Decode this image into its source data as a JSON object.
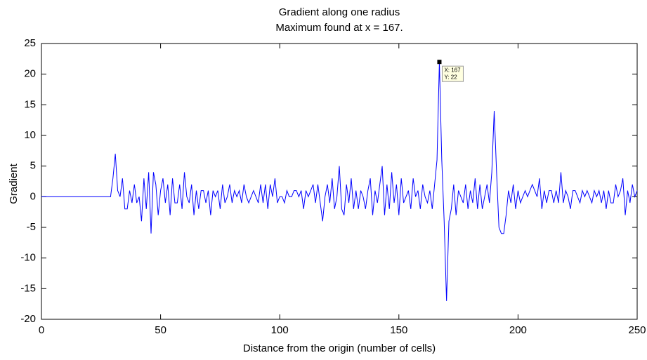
{
  "chart_data": {
    "type": "line",
    "title": "Gradient along one radius",
    "subtitle": "Maximum found at x = 167.",
    "x_label": "Distance from the origin (number of cells)",
    "y_label": "Gradient",
    "xlim": [
      0,
      250
    ],
    "ylim": [
      -20,
      25
    ],
    "xticks": [
      0,
      50,
      100,
      150,
      200,
      250
    ],
    "yticks": [
      -20,
      -15,
      -10,
      -5,
      0,
      5,
      10,
      15,
      20,
      25
    ],
    "grid": false,
    "x": [
      0,
      1,
      2,
      3,
      4,
      5,
      6,
      7,
      8,
      9,
      10,
      11,
      12,
      13,
      14,
      15,
      16,
      17,
      18,
      19,
      20,
      21,
      22,
      23,
      24,
      25,
      26,
      27,
      28,
      29,
      30,
      31,
      32,
      33,
      34,
      35,
      36,
      37,
      38,
      39,
      40,
      41,
      42,
      43,
      44,
      45,
      46,
      47,
      48,
      49,
      50,
      51,
      52,
      53,
      54,
      55,
      56,
      57,
      58,
      59,
      60,
      61,
      62,
      63,
      64,
      65,
      66,
      67,
      68,
      69,
      70,
      71,
      72,
      73,
      74,
      75,
      76,
      77,
      78,
      79,
      80,
      81,
      82,
      83,
      84,
      85,
      86,
      87,
      88,
      89,
      90,
      91,
      92,
      93,
      94,
      95,
      96,
      97,
      98,
      99,
      100,
      101,
      102,
      103,
      104,
      105,
      106,
      107,
      108,
      109,
      110,
      111,
      112,
      113,
      114,
      115,
      116,
      117,
      118,
      119,
      120,
      121,
      122,
      123,
      124,
      125,
      126,
      127,
      128,
      129,
      130,
      131,
      132,
      133,
      134,
      135,
      136,
      137,
      138,
      139,
      140,
      141,
      142,
      143,
      144,
      145,
      146,
      147,
      148,
      149,
      150,
      151,
      152,
      153,
      154,
      155,
      156,
      157,
      158,
      159,
      160,
      161,
      162,
      163,
      164,
      165,
      166,
      167,
      168,
      169,
      170,
      171,
      172,
      173,
      174,
      175,
      176,
      177,
      178,
      179,
      180,
      181,
      182,
      183,
      184,
      185,
      186,
      187,
      188,
      189,
      190,
      191,
      192,
      193,
      194,
      195,
      196,
      197,
      198,
      199,
      200,
      201,
      202,
      203,
      204,
      205,
      206,
      207,
      208,
      209,
      210,
      211,
      212,
      213,
      214,
      215,
      216,
      217,
      218,
      219,
      220,
      221,
      222,
      223,
      224,
      225,
      226,
      227,
      228,
      229,
      230,
      231,
      232,
      233,
      234,
      235,
      236,
      237,
      238,
      239,
      240,
      241,
      242,
      243,
      244,
      245,
      246,
      247,
      248,
      249,
      250
    ],
    "series": [
      {
        "color": "#0000ff",
        "values": [
          0,
          0,
          0,
          0,
          0,
          0,
          0,
          0,
          0,
          0,
          0,
          0,
          0,
          0,
          0,
          0,
          0,
          0,
          0,
          0,
          0,
          0,
          0,
          0,
          0,
          0,
          0,
          0,
          0,
          0,
          3,
          7,
          1,
          0,
          3,
          -2,
          -2,
          1,
          -1,
          2,
          -1,
          0,
          -4,
          3,
          -2,
          4,
          -6,
          4,
          2,
          -3,
          1,
          3,
          -1,
          2,
          -3,
          3,
          -1,
          -1,
          2,
          -2,
          4,
          0,
          -1,
          2,
          -3,
          1,
          -2,
          1,
          1,
          -1,
          1,
          -3,
          1,
          0,
          1,
          -2,
          2,
          -1,
          0,
          2,
          -1,
          1,
          0,
          1,
          -1,
          2,
          0,
          -1,
          0,
          1,
          0,
          -1,
          2,
          -1,
          2,
          -2,
          2,
          0,
          3,
          -1,
          0,
          0,
          -1,
          1,
          0,
          0,
          1,
          1,
          0,
          1,
          -2,
          1,
          0,
          1,
          2,
          -1,
          2,
          -1,
          -4,
          0,
          2,
          -1,
          3,
          -2,
          0,
          5,
          -2,
          -3,
          2,
          -1,
          3,
          -2,
          1,
          -2,
          1,
          0,
          -2,
          1,
          3,
          -3,
          1,
          -1,
          2,
          5,
          -3,
          2,
          -2,
          4,
          -1,
          2,
          -3,
          3,
          -1,
          0,
          1,
          -2,
          3,
          0,
          1,
          -2,
          2,
          0,
          -1,
          1,
          -2,
          2,
          6,
          22,
          6,
          -4,
          -17,
          -4,
          -2,
          2,
          -3,
          1,
          0,
          -1,
          2,
          -2,
          1,
          -1,
          3,
          -2,
          2,
          -2,
          0,
          2,
          -1,
          4,
          14,
          4,
          -5,
          -6,
          -6,
          -3,
          1,
          -1,
          2,
          -2,
          1,
          -1,
          0,
          1,
          0,
          1,
          2,
          1,
          0,
          3,
          -2,
          1,
          -1,
          1,
          1,
          -1,
          1,
          -1,
          4,
          -1,
          1,
          0,
          -2,
          1,
          1,
          0,
          -1,
          1,
          0,
          1,
          0,
          -1,
          1,
          0,
          1,
          -1,
          1,
          -2,
          1,
          -1,
          -1,
          2,
          0,
          1,
          3,
          -3,
          1,
          -1,
          2,
          0,
          1
        ]
      }
    ],
    "annotations": [
      {
        "x": 167,
        "y": 22,
        "label_x": "X: 167",
        "label_y": "Y: 22"
      }
    ]
  }
}
